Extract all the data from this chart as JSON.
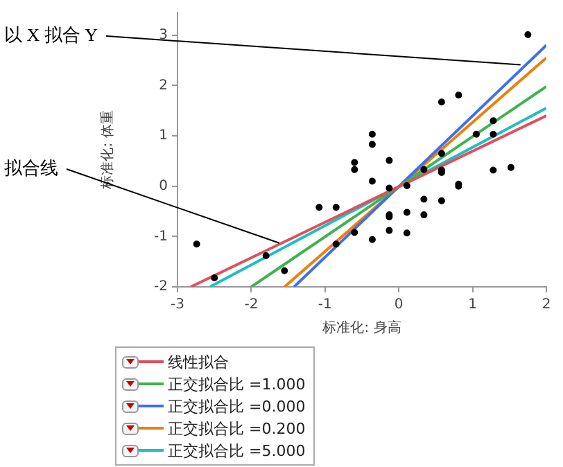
{
  "chart_data": {
    "type": "scatter",
    "xlabel": "标准化: 身高",
    "ylabel": "标准化: 体重",
    "xlim": [
      -3,
      2
    ],
    "ylim": [
      -2,
      3.45
    ],
    "xticks": [
      -3,
      -2,
      -1,
      0,
      1,
      2
    ],
    "yticks": [
      -2,
      -1,
      0,
      1,
      2,
      3
    ],
    "legend": "bottom left",
    "annotations": [
      {
        "text": "以 X 拟合 Y",
        "x": 1.65,
        "y": 2.41
      },
      {
        "text": "拟合线",
        "x": -1.62,
        "y": -1.13
      }
    ],
    "series": [
      {
        "marker": "circle",
        "color": "#000000",
        "x": [
          -2.74,
          -2.5,
          -1.8,
          -1.55,
          -1.08,
          -0.85,
          -0.85,
          -0.6,
          -0.6,
          -0.6,
          -0.36,
          -0.36,
          -0.36,
          -0.36,
          -0.13,
          -0.13,
          -0.13,
          -0.13,
          -0.13,
          0.11,
          0.11,
          0.11,
          0.34,
          0.34,
          0.34,
          0.58,
          0.58,
          0.58,
          0.58,
          0.58,
          0.81,
          0.81,
          0.81,
          1.05,
          1.28,
          1.28,
          1.28,
          1.52,
          1.75
        ],
        "values": [
          -1.15,
          -1.82,
          -1.38,
          -1.68,
          -0.42,
          -0.42,
          -1.15,
          0.47,
          0.33,
          -0.92,
          1.03,
          0.83,
          0.1,
          -1.06,
          0.51,
          -0.04,
          -0.57,
          -0.61,
          -0.88,
          0.01,
          -0.52,
          -0.93,
          0.33,
          -0.26,
          -0.57,
          1.67,
          0.65,
          0.32,
          0.27,
          -0.29,
          1.81,
          0.04,
          0.0,
          1.03,
          1.3,
          1.03,
          0.32,
          0.37,
          3.01
        ]
      },
      {
        "type": "line",
        "name": "线性拟合",
        "color": "#e0505f",
        "marker": "none",
        "x": [
          -2.82,
          2
        ],
        "values": [
          -2,
          1.4
        ]
      },
      {
        "type": "line",
        "name": "正交拟合比 =1.000",
        "color": "#3fb34f",
        "marker": "none",
        "x": [
          -2.0,
          2
        ],
        "values": [
          -2,
          1.98
        ]
      },
      {
        "type": "line",
        "name": "正交拟合比 =0.000",
        "color": "#3f6fef",
        "marker": "none",
        "x": [
          -1.42,
          2
        ],
        "values": [
          -2,
          2.8
        ]
      },
      {
        "type": "line",
        "name": "正交拟合比 =0.200",
        "color": "#f07f09",
        "marker": "none",
        "x": [
          -1.55,
          2
        ],
        "values": [
          -2,
          2.55
        ]
      },
      {
        "type": "line",
        "name": "正交拟合比 =5.000",
        "color": "#1fbfbf",
        "marker": "none",
        "x": [
          -2.56,
          2
        ],
        "values": [
          -2,
          1.55
        ]
      }
    ]
  }
}
